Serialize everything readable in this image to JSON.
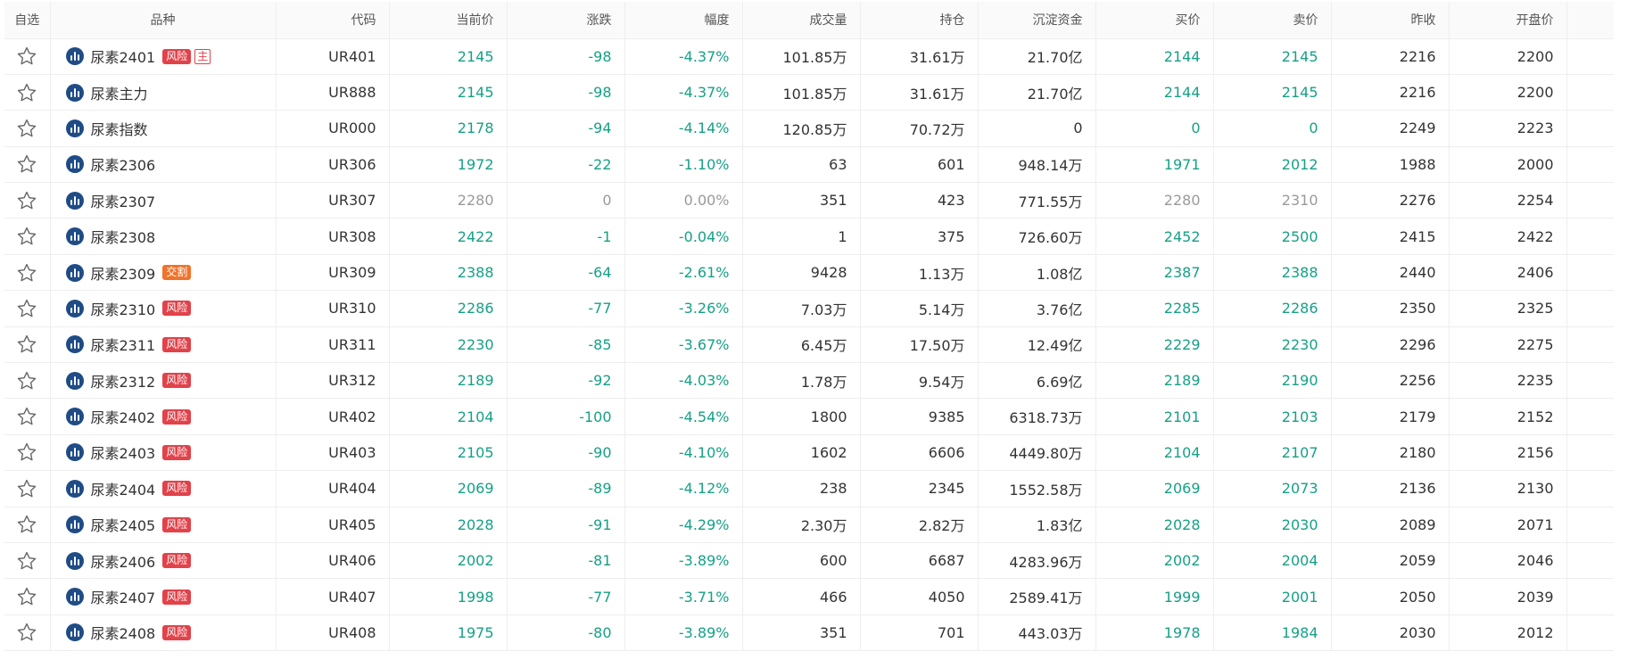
{
  "colors": {
    "down": "#16a085",
    "flat": "#9a9a9a",
    "neutral": "#333333",
    "risk_tag": "#e2424a",
    "delivery_tag": "#f0732b",
    "instrument_icon": "#1f4c86"
  },
  "headers": [
    "自选",
    "品种",
    "代码",
    "当前价",
    "涨跌",
    "幅度",
    "成交量",
    "持仓",
    "沉淀资金",
    "买价",
    "卖价",
    "昨收",
    "开盘价"
  ],
  "rows": [
    {
      "name": "尿素2401",
      "tag": "风险",
      "tag_type": "risk",
      "main": "主",
      "code": "UR401",
      "trend": "down",
      "price": "2145",
      "change": "-98",
      "pct": "-4.37%",
      "volume": "101.85万",
      "oi": "31.61万",
      "funds": "21.70亿",
      "bid": "2144",
      "ask": "2145",
      "prev_close": "2216",
      "open": "2200"
    },
    {
      "name": "尿素主力",
      "tag": "",
      "tag_type": "",
      "main": "",
      "code": "UR888",
      "trend": "down",
      "price": "2145",
      "change": "-98",
      "pct": "-4.37%",
      "volume": "101.85万",
      "oi": "31.61万",
      "funds": "21.70亿",
      "bid": "2144",
      "ask": "2145",
      "prev_close": "2216",
      "open": "2200"
    },
    {
      "name": "尿素指数",
      "tag": "",
      "tag_type": "",
      "main": "",
      "code": "UR000",
      "trend": "down",
      "price": "2178",
      "change": "-94",
      "pct": "-4.14%",
      "volume": "120.85万",
      "oi": "70.72万",
      "funds": "0",
      "bid": "0",
      "ask": "0",
      "prev_close": "2249",
      "open": "2223"
    },
    {
      "name": "尿素2306",
      "tag": "",
      "tag_type": "",
      "main": "",
      "code": "UR306",
      "trend": "down",
      "price": "1972",
      "change": "-22",
      "pct": "-1.10%",
      "volume": "63",
      "oi": "601",
      "funds": "948.14万",
      "bid": "1971",
      "ask": "2012",
      "prev_close": "1988",
      "open": "2000"
    },
    {
      "name": "尿素2307",
      "tag": "",
      "tag_type": "",
      "main": "",
      "code": "UR307",
      "trend": "flat",
      "price": "2280",
      "change": "0",
      "pct": "0.00%",
      "volume": "351",
      "oi": "423",
      "funds": "771.55万",
      "bid": "2280",
      "ask": "2310",
      "prev_close": "2276",
      "open": "2254"
    },
    {
      "name": "尿素2308",
      "tag": "",
      "tag_type": "",
      "main": "",
      "code": "UR308",
      "trend": "down",
      "price": "2422",
      "change": "-1",
      "pct": "-0.04%",
      "volume": "1",
      "oi": "375",
      "funds": "726.60万",
      "bid": "2452",
      "ask": "2500",
      "prev_close": "2415",
      "open": "2422"
    },
    {
      "name": "尿素2309",
      "tag": "交割",
      "tag_type": "deliv",
      "main": "",
      "code": "UR309",
      "trend": "down",
      "price": "2388",
      "change": "-64",
      "pct": "-2.61%",
      "volume": "9428",
      "oi": "1.13万",
      "funds": "1.08亿",
      "bid": "2387",
      "ask": "2388",
      "prev_close": "2440",
      "open": "2406"
    },
    {
      "name": "尿素2310",
      "tag": "风险",
      "tag_type": "risk",
      "main": "",
      "code": "UR310",
      "trend": "down",
      "price": "2286",
      "change": "-77",
      "pct": "-3.26%",
      "volume": "7.03万",
      "oi": "5.14万",
      "funds": "3.76亿",
      "bid": "2285",
      "ask": "2286",
      "prev_close": "2350",
      "open": "2325"
    },
    {
      "name": "尿素2311",
      "tag": "风险",
      "tag_type": "risk",
      "main": "",
      "code": "UR311",
      "trend": "down",
      "price": "2230",
      "change": "-85",
      "pct": "-3.67%",
      "volume": "6.45万",
      "oi": "17.50万",
      "funds": "12.49亿",
      "bid": "2229",
      "ask": "2230",
      "prev_close": "2296",
      "open": "2275"
    },
    {
      "name": "尿素2312",
      "tag": "风险",
      "tag_type": "risk",
      "main": "",
      "code": "UR312",
      "trend": "down",
      "price": "2189",
      "change": "-92",
      "pct": "-4.03%",
      "volume": "1.78万",
      "oi": "9.54万",
      "funds": "6.69亿",
      "bid": "2189",
      "ask": "2190",
      "prev_close": "2256",
      "open": "2235"
    },
    {
      "name": "尿素2402",
      "tag": "风险",
      "tag_type": "risk",
      "main": "",
      "code": "UR402",
      "trend": "down",
      "price": "2104",
      "change": "-100",
      "pct": "-4.54%",
      "volume": "1800",
      "oi": "9385",
      "funds": "6318.73万",
      "bid": "2101",
      "ask": "2103",
      "prev_close": "2179",
      "open": "2152"
    },
    {
      "name": "尿素2403",
      "tag": "风险",
      "tag_type": "risk",
      "main": "",
      "code": "UR403",
      "trend": "down",
      "price": "2105",
      "change": "-90",
      "pct": "-4.10%",
      "volume": "1602",
      "oi": "6606",
      "funds": "4449.80万",
      "bid": "2104",
      "ask": "2107",
      "prev_close": "2180",
      "open": "2156"
    },
    {
      "name": "尿素2404",
      "tag": "风险",
      "tag_type": "risk",
      "main": "",
      "code": "UR404",
      "trend": "down",
      "price": "2069",
      "change": "-89",
      "pct": "-4.12%",
      "volume": "238",
      "oi": "2345",
      "funds": "1552.58万",
      "bid": "2069",
      "ask": "2073",
      "prev_close": "2136",
      "open": "2130"
    },
    {
      "name": "尿素2405",
      "tag": "风险",
      "tag_type": "risk",
      "main": "",
      "code": "UR405",
      "trend": "down",
      "price": "2028",
      "change": "-91",
      "pct": "-4.29%",
      "volume": "2.30万",
      "oi": "2.82万",
      "funds": "1.83亿",
      "bid": "2028",
      "ask": "2030",
      "prev_close": "2089",
      "open": "2071"
    },
    {
      "name": "尿素2406",
      "tag": "风险",
      "tag_type": "risk",
      "main": "",
      "code": "UR406",
      "trend": "down",
      "price": "2002",
      "change": "-81",
      "pct": "-3.89%",
      "volume": "600",
      "oi": "6687",
      "funds": "4283.96万",
      "bid": "2002",
      "ask": "2004",
      "prev_close": "2059",
      "open": "2046"
    },
    {
      "name": "尿素2407",
      "tag": "风险",
      "tag_type": "risk",
      "main": "",
      "code": "UR407",
      "trend": "down",
      "price": "1998",
      "change": "-77",
      "pct": "-3.71%",
      "volume": "466",
      "oi": "4050",
      "funds": "2589.41万",
      "bid": "1999",
      "ask": "2001",
      "prev_close": "2050",
      "open": "2039"
    },
    {
      "name": "尿素2408",
      "tag": "风险",
      "tag_type": "risk",
      "main": "",
      "code": "UR408",
      "trend": "down",
      "price": "1975",
      "change": "-80",
      "pct": "-3.89%",
      "volume": "351",
      "oi": "701",
      "funds": "443.03万",
      "bid": "1978",
      "ask": "1984",
      "prev_close": "2030",
      "open": "2012"
    }
  ]
}
